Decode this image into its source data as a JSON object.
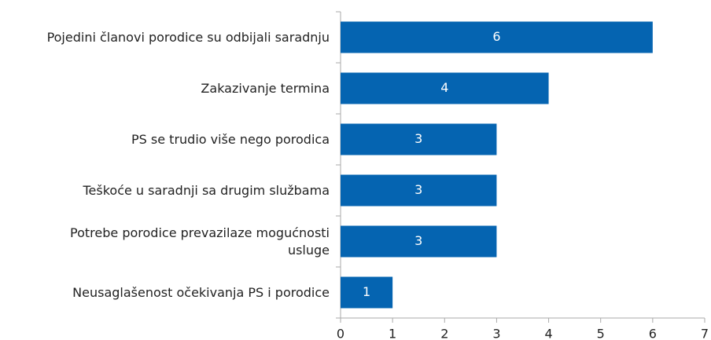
{
  "chart_data": {
    "type": "barh",
    "categories": [
      "Pojedini članovi porodice su odbijali saradnju",
      "Zakazivanje termina",
      "PS se trudio više nego porodica",
      "Teškoće u saradnji sa drugim službama",
      "Potrebe porodice prevazilaze mogućnosti\nusluge",
      "Neusaglašenost očekivanja PS i porodice"
    ],
    "values": [
      6,
      4,
      3,
      3,
      3,
      1
    ],
    "color": "#0564b1",
    "xlim": [
      0,
      7
    ],
    "xticks": [
      0,
      1,
      2,
      3,
      4,
      5,
      6,
      7
    ],
    "grid": false
  }
}
